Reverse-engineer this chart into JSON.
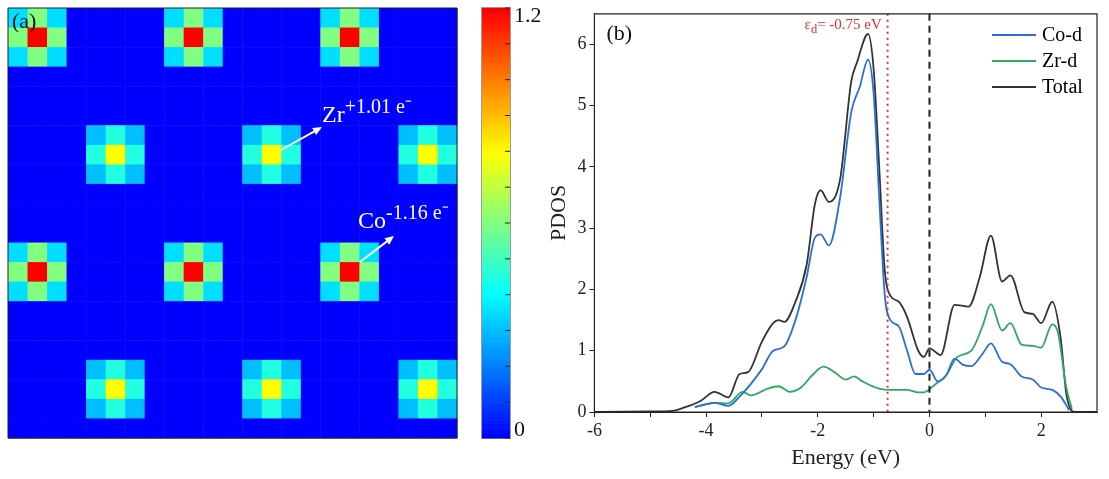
{
  "chart_data": [
    {
      "type": "heatmap",
      "tick_labels": false,
      "categories": [
        null,
        null,
        null,
        null,
        null,
        null,
        null,
        null,
        null,
        null,
        null,
        null,
        null,
        null,
        null,
        null,
        null,
        null,
        null,
        null,
        null,
        null,
        null
      ],
      "y_categories": [
        null,
        null,
        null,
        null,
        null,
        null,
        null,
        null,
        null,
        null,
        null,
        null,
        null,
        null,
        null,
        null,
        null,
        null,
        null,
        null,
        null,
        null
      ],
      "cells": [
        [
          0.35,
          0.6,
          0.35,
          0,
          0,
          0,
          0,
          0,
          0.35,
          0.6,
          0.35,
          0,
          0,
          0,
          0,
          0,
          0.35,
          0.6,
          0.35,
          0,
          0,
          0,
          0
        ],
        [
          0.6,
          1.2,
          0.6,
          0,
          0,
          0,
          0,
          0,
          0.6,
          1.2,
          0.6,
          0,
          0,
          0,
          0,
          0,
          0.6,
          1.2,
          0.6,
          0,
          0,
          0,
          0
        ],
        [
          0.35,
          0.6,
          0.35,
          0,
          0,
          0,
          0,
          0,
          0.35,
          0.6,
          0.35,
          0,
          0,
          0,
          0,
          0,
          0.35,
          0.6,
          0.35,
          0,
          0,
          0,
          0
        ],
        [
          0,
          0,
          0,
          0,
          0,
          0,
          0,
          0,
          0,
          0,
          0,
          0,
          0,
          0,
          0,
          0,
          0,
          0,
          0,
          0,
          0,
          0,
          0
        ],
        [
          0,
          0,
          0,
          0,
          0,
          0,
          0,
          0,
          0,
          0,
          0,
          0,
          0,
          0,
          0,
          0,
          0,
          0,
          0,
          0,
          0,
          0,
          0
        ],
        [
          0,
          0,
          0,
          0,
          0,
          0,
          0,
          0,
          0,
          0,
          0,
          0,
          0,
          0,
          0,
          0,
          0,
          0,
          0,
          0,
          0,
          0,
          0
        ],
        [
          0,
          0,
          0,
          0,
          0.3,
          0.45,
          0.3,
          0,
          0,
          0,
          0,
          0,
          0.3,
          0.45,
          0.3,
          0,
          0,
          0,
          0,
          0,
          0.3,
          0.45,
          0.3
        ],
        [
          0,
          0,
          0,
          0,
          0.45,
          0.8,
          0.45,
          0,
          0,
          0,
          0,
          0,
          0.45,
          0.8,
          0.45,
          0,
          0,
          0,
          0,
          0,
          0.45,
          0.8,
          0.45
        ],
        [
          0,
          0,
          0,
          0,
          0.3,
          0.45,
          0.3,
          0,
          0,
          0,
          0,
          0,
          0.3,
          0.45,
          0.3,
          0,
          0,
          0,
          0,
          0,
          0.3,
          0.45,
          0.3
        ],
        [
          0,
          0,
          0,
          0,
          0,
          0,
          0,
          0,
          0,
          0,
          0,
          0,
          0,
          0,
          0,
          0,
          0,
          0,
          0,
          0,
          0,
          0,
          0
        ],
        [
          0,
          0,
          0,
          0,
          0,
          0,
          0,
          0,
          0,
          0,
          0,
          0,
          0,
          0,
          0,
          0,
          0,
          0,
          0,
          0,
          0,
          0,
          0
        ],
        [
          0,
          0,
          0,
          0,
          0,
          0,
          0,
          0,
          0,
          0,
          0,
          0,
          0,
          0,
          0,
          0,
          0,
          0,
          0,
          0,
          0,
          0,
          0
        ],
        [
          0.35,
          0.6,
          0.35,
          0,
          0,
          0,
          0,
          0,
          0.35,
          0.6,
          0.35,
          0,
          0,
          0,
          0,
          0,
          0.35,
          0.6,
          0.35,
          0,
          0,
          0,
          0
        ],
        [
          0.6,
          1.2,
          0.6,
          0,
          0,
          0,
          0,
          0,
          0.6,
          1.2,
          0.6,
          0,
          0,
          0,
          0,
          0,
          0.6,
          1.2,
          0.6,
          0,
          0,
          0,
          0
        ],
        [
          0.35,
          0.6,
          0.35,
          0,
          0,
          0,
          0,
          0,
          0.35,
          0.6,
          0.35,
          0,
          0,
          0,
          0,
          0,
          0.35,
          0.6,
          0.35,
          0,
          0,
          0,
          0
        ],
        [
          0,
          0,
          0,
          0,
          0,
          0,
          0,
          0,
          0,
          0,
          0,
          0,
          0,
          0,
          0,
          0,
          0,
          0,
          0,
          0,
          0,
          0,
          0
        ],
        [
          0,
          0,
          0,
          0,
          0,
          0,
          0,
          0,
          0,
          0,
          0,
          0,
          0,
          0,
          0,
          0,
          0,
          0,
          0,
          0,
          0,
          0,
          0
        ],
        [
          0,
          0,
          0,
          0,
          0,
          0,
          0,
          0,
          0,
          0,
          0,
          0,
          0,
          0,
          0,
          0,
          0,
          0,
          0,
          0,
          0,
          0,
          0
        ],
        [
          0,
          0,
          0,
          0,
          0.3,
          0.45,
          0.3,
          0,
          0,
          0,
          0,
          0,
          0.3,
          0.45,
          0.3,
          0,
          0,
          0,
          0,
          0,
          0.3,
          0.45,
          0.3
        ],
        [
          0,
          0,
          0,
          0,
          0.45,
          0.8,
          0.45,
          0,
          0,
          0,
          0,
          0,
          0.45,
          0.8,
          0.45,
          0,
          0,
          0,
          0,
          0,
          0.45,
          0.8,
          0.45
        ],
        [
          0,
          0,
          0,
          0,
          0.3,
          0.45,
          0.3,
          0,
          0,
          0,
          0,
          0,
          0.3,
          0.45,
          0.3,
          0,
          0,
          0,
          0,
          0,
          0.3,
          0.45,
          0.3
        ],
        [
          0,
          0,
          0,
          0,
          0,
          0,
          0,
          0,
          0,
          0,
          0,
          0,
          0,
          0,
          0,
          0,
          0,
          0,
          0,
          0,
          0,
          0,
          0
        ]
      ],
      "clim": [
        0,
        1.2
      ],
      "cticks": [
        0,
        {
          "value": 0.1,
          "label": null
        },
        {
          "value": 0.2,
          "label": null
        },
        {
          "value": 0.3,
          "label": null
        },
        {
          "value": 0.4,
          "label": null
        },
        {
          "value": 0.5,
          "label": null
        },
        {
          "value": 0.6,
          "label": null
        },
        {
          "value": 0.7,
          "label": null
        },
        {
          "value": 0.8,
          "label": null
        },
        {
          "value": 0.9,
          "label": null
        },
        {
          "value": 1.0,
          "label": null
        },
        {
          "value": 1.1,
          "label": null
        },
        1.2
      ],
      "annotations": [
        "(a)",
        "Zr$^{+1.01 e⁻}$",
        "Co$^{-1.16 e⁻}$"
      ]
    },
    {
      "type": "line",
      "xlabel": "Energy (eV)",
      "ylabel": "PDOS",
      "xlim": [
        -6,
        3
      ],
      "xticks": [
        -6,
        {
          "value": -5,
          "label": null
        },
        -4,
        {
          "value": -3,
          "label": null
        },
        -2,
        {
          "value": -1,
          "label": null
        },
        0,
        {
          "value": 1,
          "label": null
        },
        2
      ],
      "ylim": [
        0,
        6.5
      ],
      "yticks": [
        0,
        1,
        2,
        3,
        4,
        5,
        6
      ],
      "grid": false,
      "legend": "top right",
      "marker": "none",
      "series": [
        {
          "name": "Co-d",
          "color": "#2a6fd6",
          "x": [
            -4.2,
            -3.85,
            -3.6,
            -3.4,
            -3.0,
            -2.8,
            -2.6,
            -2.4,
            -2.2,
            -2.05,
            -1.95,
            -1.8,
            -1.6,
            -1.4,
            -1.25,
            -1.1,
            -1.0,
            -0.9,
            -0.8,
            -0.7,
            -0.55,
            -0.4,
            -0.25,
            -0.1,
            0,
            0.15,
            0.3,
            0.45,
            0.6,
            0.75,
            0.95,
            1.1,
            1.3,
            1.45,
            1.65,
            1.85,
            2.0,
            2.2,
            2.35,
            2.5
          ],
          "values": [
            0.08,
            0.15,
            0.1,
            0.25,
            0.7,
            1.0,
            1.07,
            1.5,
            2.2,
            2.85,
            2.9,
            2.72,
            3.5,
            4.9,
            5.3,
            5.75,
            5.2,
            3.5,
            1.9,
            1.5,
            1.4,
            1.0,
            0.62,
            0.62,
            0.69,
            0.5,
            0.6,
            0.87,
            0.77,
            0.75,
            0.95,
            1.12,
            0.82,
            0.78,
            0.58,
            0.53,
            0.4,
            0.36,
            0.25,
            0.03
          ]
        },
        {
          "name": "Zr-d",
          "color": "#2fa860",
          "x": [
            -4.2,
            -3.85,
            -3.6,
            -3.35,
            -3.2,
            -2.9,
            -2.7,
            -2.5,
            -2.3,
            -2.1,
            -1.9,
            -1.7,
            -1.5,
            -1.35,
            -1.2,
            -0.9,
            -0.7,
            -0.4,
            -0.2,
            -0.1,
            0.1,
            0.3,
            0.5,
            0.75,
            0.95,
            1.1,
            1.3,
            1.45,
            1.65,
            1.85,
            2.0,
            2.2,
            2.3,
            2.45,
            2.55
          ],
          "values": [
            0.08,
            0.15,
            0.14,
            0.33,
            0.27,
            0.38,
            0.42,
            0.33,
            0.4,
            0.6,
            0.74,
            0.65,
            0.53,
            0.58,
            0.5,
            0.38,
            0.36,
            0.36,
            0.32,
            0.32,
            0.45,
            0.6,
            0.9,
            1.0,
            1.4,
            1.76,
            1.33,
            1.45,
            1.1,
            1.08,
            1.05,
            1.43,
            1.3,
            0.4,
            0.05
          ]
        },
        {
          "name": "Total",
          "color": "#333333",
          "x": [
            -6,
            -5,
            -4.6,
            -4.4,
            -4.1,
            -3.85,
            -3.6,
            -3.4,
            -3.25,
            -3.0,
            -2.8,
            -2.7,
            -2.6,
            -2.4,
            -2.2,
            -2.05,
            -1.95,
            -1.8,
            -1.6,
            -1.4,
            -1.3,
            -1.1,
            -1.0,
            -0.9,
            -0.8,
            -0.7,
            -0.55,
            -0.4,
            -0.2,
            -0.1,
            0,
            0.2,
            0.45,
            0.7,
            0.9,
            1.1,
            1.3,
            1.45,
            1.7,
            1.85,
            2.0,
            2.2,
            2.35,
            2.45,
            2.6,
            3
          ],
          "values": [
            0,
            0.01,
            0.02,
            0.07,
            0.18,
            0.33,
            0.24,
            0.62,
            0.65,
            1.15,
            1.45,
            1.5,
            1.47,
            1.8,
            2.4,
            3.4,
            3.62,
            3.43,
            3.8,
            5.4,
            5.7,
            6.17,
            5.6,
            4.0,
            2.3,
            1.9,
            1.8,
            1.55,
            1.0,
            0.9,
            1.04,
            0.93,
            1.75,
            1.72,
            2.2,
            2.88,
            2.13,
            2.23,
            1.63,
            1.6,
            1.45,
            1.8,
            1.2,
            0.3,
            0,
            0
          ]
        }
      ],
      "ref_lines": [
        {
          "axis": "x",
          "value": -0.75,
          "label": "ε$_{d}$=  -0.75 eV",
          "color": "#e03030",
          "line_style": "dotted"
        },
        {
          "axis": "x",
          "value": 0,
          "color": "#222222",
          "line_style": "dashed"
        }
      ],
      "annotations": [
        "(b)"
      ]
    }
  ]
}
